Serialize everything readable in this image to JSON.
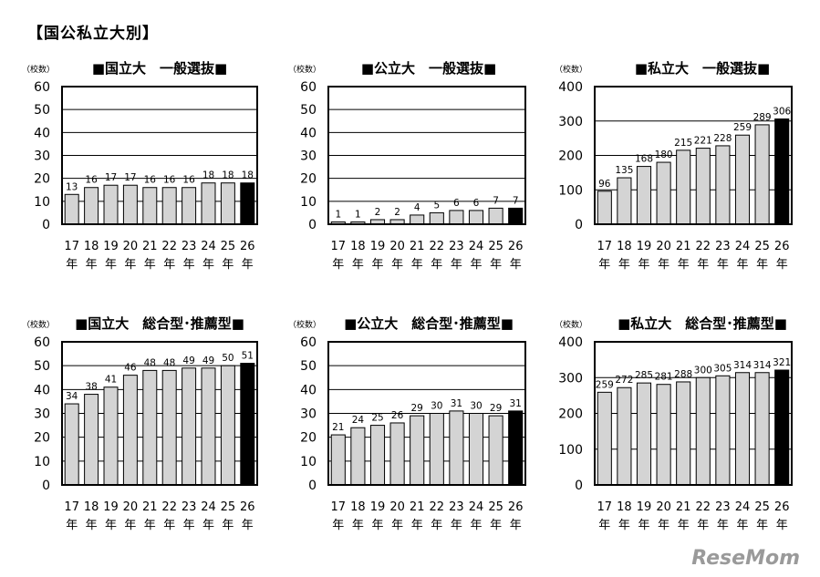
{
  "page": {
    "title": "【国公私立大別】",
    "logo": "ReseMom"
  },
  "chart_data": [
    {
      "type": "bar",
      "title": "■国立大　一般選抜■",
      "unit_label": "（校数）",
      "categories": [
        "17\n年",
        "18\n年",
        "19\n年",
        "20\n年",
        "21\n年",
        "22\n年",
        "23\n年",
        "24\n年",
        "25\n年",
        "26\n年"
      ],
      "values": [
        13,
        16,
        17,
        17,
        16,
        16,
        16,
        18,
        18,
        18
      ],
      "ylim": [
        0,
        60
      ],
      "yticks": [
        0,
        10,
        20,
        30,
        40,
        50,
        60
      ],
      "grid": true,
      "bar_color": "#d4d4d4",
      "highlight_color": "#000000",
      "highlight_last": true
    },
    {
      "type": "bar",
      "title": "■公立大　一般選抜■",
      "unit_label": "（校数）",
      "categories": [
        "17\n年",
        "18\n年",
        "19\n年",
        "20\n年",
        "21\n年",
        "22\n年",
        "23\n年",
        "24\n年",
        "25\n年",
        "26\n年"
      ],
      "values": [
        1,
        1,
        2,
        2,
        4,
        5,
        6,
        6,
        7,
        7
      ],
      "ylim": [
        0,
        60
      ],
      "yticks": [
        0,
        10,
        20,
        30,
        40,
        50,
        60
      ],
      "grid": true,
      "bar_color": "#d4d4d4",
      "highlight_color": "#000000",
      "highlight_last": true
    },
    {
      "type": "bar",
      "title": "■私立大　一般選抜■",
      "unit_label": "（校数）",
      "categories": [
        "17\n年",
        "18\n年",
        "19\n年",
        "20\n年",
        "21\n年",
        "22\n年",
        "23\n年",
        "24\n年",
        "25\n年",
        "26\n年"
      ],
      "values": [
        96,
        135,
        168,
        180,
        215,
        221,
        228,
        259,
        289,
        306
      ],
      "ylim": [
        0,
        400
      ],
      "yticks": [
        0,
        100,
        200,
        300,
        400
      ],
      "grid": true,
      "bar_color": "#d4d4d4",
      "highlight_color": "#000000",
      "highlight_last": true
    },
    {
      "type": "bar",
      "title": "■国立大　総合型･推薦型■",
      "unit_label": "（校数）",
      "categories": [
        "17\n年",
        "18\n年",
        "19\n年",
        "20\n年",
        "21\n年",
        "22\n年",
        "23\n年",
        "24\n年",
        "25\n年",
        "26\n年"
      ],
      "values": [
        34,
        38,
        41,
        46,
        48,
        48,
        49,
        49,
        50,
        51
      ],
      "ylim": [
        0,
        60
      ],
      "yticks": [
        0,
        10,
        20,
        30,
        40,
        50,
        60
      ],
      "grid": true,
      "bar_color": "#d4d4d4",
      "highlight_color": "#000000",
      "highlight_last": true
    },
    {
      "type": "bar",
      "title": "■公立大　総合型･推薦型■",
      "unit_label": "（校数）",
      "categories": [
        "17\n年",
        "18\n年",
        "19\n年",
        "20\n年",
        "21\n年",
        "22\n年",
        "23\n年",
        "24\n年",
        "25\n年",
        "26\n年"
      ],
      "values": [
        21,
        24,
        25,
        26,
        29,
        30,
        31,
        30,
        29,
        31
      ],
      "ylim": [
        0,
        60
      ],
      "yticks": [
        0,
        10,
        20,
        30,
        40,
        50,
        60
      ],
      "grid": true,
      "bar_color": "#d4d4d4",
      "highlight_color": "#000000",
      "highlight_last": true
    },
    {
      "type": "bar",
      "title": "■私立大　総合型･推薦型■",
      "unit_label": "（校数）",
      "categories": [
        "17\n年",
        "18\n年",
        "19\n年",
        "20\n年",
        "21\n年",
        "22\n年",
        "23\n年",
        "24\n年",
        "25\n年",
        "26\n年"
      ],
      "values": [
        259,
        272,
        285,
        281,
        288,
        300,
        305,
        314,
        314,
        321
      ],
      "ylim": [
        0,
        400
      ],
      "yticks": [
        0,
        100,
        200,
        300,
        400
      ],
      "grid": true,
      "bar_color": "#d4d4d4",
      "highlight_color": "#000000",
      "highlight_last": true
    }
  ]
}
